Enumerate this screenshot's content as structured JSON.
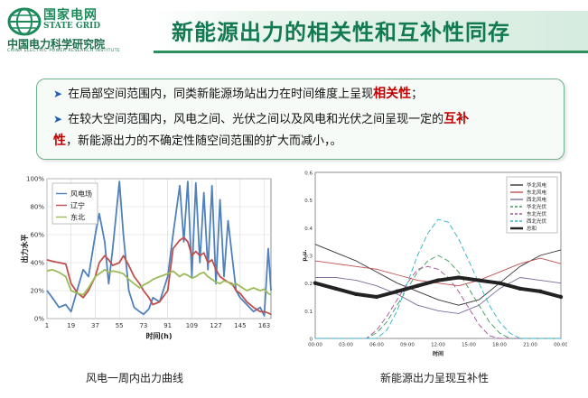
{
  "header": {
    "org_name_cn": "国家电网",
    "org_name_en": "STATE GRID",
    "institute_cn": "中国电力科学研究院",
    "institute_en": "CHINA ELECTRIC POWER RESEARCH INSTITUTE",
    "slide_title": "新能源出力的相关性和互补性同存"
  },
  "bullets": [
    {
      "prefix": "在局部空间范围内，同类新能源场站出力在时间维度上呈现",
      "highlight": "相关性",
      "suffix": "；"
    },
    {
      "prefix": "在较大空间范围内，风电之间、光伏之间以及风电和光伏之间呈现一定的",
      "highlight": "互补",
      "highlight2": "性",
      "suffix": "，新能源出力的不确定性随空间范围的扩大而减小，。"
    }
  ],
  "captions": {
    "left": "风电一周内出力曲线",
    "right": "新能源出力呈现互补性"
  },
  "colors": {
    "brand_green": "#117a4f",
    "highlight_red": "#c00000",
    "bullet_blue": "#1e5fb5"
  },
  "chart_data": [
    {
      "type": "line",
      "ylabel": "出力水平",
      "xlabel": "时间(h)",
      "x_ticks": [
        "1",
        "19",
        "37",
        "55",
        "73",
        "91",
        "109",
        "127",
        "145",
        "163"
      ],
      "y_ticks": [
        "0%",
        "20%",
        "40%",
        "60%",
        "80%",
        "100%"
      ],
      "xlim": [
        1,
        168
      ],
      "ylim": [
        0,
        1
      ],
      "legend": "top-left",
      "series": [
        {
          "name": "风电场",
          "color": "#4f81bd",
          "x": [
            1,
            5,
            10,
            15,
            19,
            24,
            28,
            32,
            37,
            40,
            44,
            47,
            50,
            55,
            58,
            62,
            66,
            70,
            73,
            77,
            80,
            85,
            91,
            95,
            100,
            103,
            106,
            109,
            112,
            115,
            118,
            121,
            124,
            127,
            130,
            133,
            136,
            139,
            142,
            145,
            150,
            155,
            160,
            163,
            166,
            168
          ],
          "values": [
            0.2,
            0.15,
            0.08,
            0.1,
            0.05,
            0.22,
            0.35,
            0.3,
            0.6,
            0.75,
            0.55,
            0.25,
            0.5,
            0.98,
            0.6,
            0.2,
            0.08,
            0.05,
            0.03,
            0.07,
            0.15,
            0.12,
            0.3,
            0.6,
            0.95,
            0.55,
            0.98,
            0.3,
            0.97,
            0.4,
            0.9,
            0.35,
            0.95,
            0.25,
            0.85,
            0.3,
            0.7,
            0.45,
            0.2,
            0.15,
            0.1,
            0.05,
            0.08,
            0.02,
            0.5,
            0.2
          ]
        },
        {
          "name": "辽宁",
          "color": "#c0504d",
          "x": [
            1,
            5,
            10,
            15,
            19,
            24,
            28,
            32,
            37,
            40,
            44,
            47,
            50,
            55,
            58,
            62,
            66,
            70,
            73,
            77,
            80,
            85,
            91,
            95,
            100,
            103,
            106,
            109,
            112,
            115,
            118,
            121,
            124,
            127,
            130,
            133,
            136,
            139,
            142,
            145,
            150,
            155,
            160,
            163,
            166,
            168
          ],
          "values": [
            0.42,
            0.41,
            0.4,
            0.39,
            0.25,
            0.18,
            0.15,
            0.2,
            0.3,
            0.4,
            0.45,
            0.42,
            0.38,
            0.4,
            0.45,
            0.38,
            0.3,
            0.25,
            0.2,
            0.15,
            0.1,
            0.12,
            0.2,
            0.5,
            0.56,
            0.58,
            0.55,
            0.45,
            0.48,
            0.45,
            0.47,
            0.4,
            0.42,
            0.35,
            0.3,
            0.28,
            0.26,
            0.25,
            0.2,
            0.18,
            0.12,
            0.08,
            0.05,
            0.05,
            0.04,
            0.03
          ]
        },
        {
          "name": "东北",
          "color": "#9bbb59",
          "x": [
            1,
            5,
            10,
            15,
            19,
            24,
            28,
            32,
            37,
            40,
            44,
            47,
            50,
            55,
            58,
            62,
            66,
            70,
            73,
            77,
            80,
            85,
            91,
            95,
            100,
            103,
            106,
            109,
            112,
            115,
            118,
            121,
            124,
            127,
            130,
            133,
            136,
            139,
            142,
            145,
            150,
            155,
            160,
            163,
            166,
            168
          ],
          "values": [
            0.34,
            0.35,
            0.33,
            0.3,
            0.2,
            0.18,
            0.17,
            0.22,
            0.3,
            0.32,
            0.35,
            0.33,
            0.34,
            0.33,
            0.32,
            0.28,
            0.25,
            0.22,
            0.24,
            0.26,
            0.28,
            0.3,
            0.32,
            0.34,
            0.3,
            0.32,
            0.31,
            0.29,
            0.3,
            0.32,
            0.33,
            0.3,
            0.28,
            0.26,
            0.25,
            0.27,
            0.26,
            0.24,
            0.25,
            0.23,
            0.2,
            0.22,
            0.2,
            0.21,
            0.18,
            0.17
          ]
        }
      ]
    },
    {
      "type": "line",
      "xlabel": "时间",
      "ylabel": "p.u.",
      "x_ticks": [
        "00:00",
        "03:00",
        "06:00",
        "09:00",
        "12:00",
        "15:00",
        "18:00",
        "21:00",
        "00:00"
      ],
      "y_ticks": [
        "0",
        "0.1",
        "0.2",
        "0.3",
        "0.4",
        "0.5",
        "0.6"
      ],
      "xlim": [
        0,
        24
      ],
      "ylim": [
        0,
        0.6
      ],
      "legend": "top-right",
      "series": [
        {
          "name": "华北风电",
          "color": "#333333",
          "dash": "none",
          "x": [
            0,
            2,
            4,
            6,
            8,
            10,
            12,
            14,
            16,
            18,
            20,
            22,
            24
          ],
          "values": [
            0.34,
            0.31,
            0.28,
            0.24,
            0.2,
            0.17,
            0.14,
            0.12,
            0.14,
            0.2,
            0.26,
            0.3,
            0.32
          ]
        },
        {
          "name": "东北风电",
          "color": "#c0504d",
          "dash": "none",
          "x": [
            0,
            2,
            4,
            6,
            8,
            10,
            12,
            14,
            16,
            18,
            20,
            22,
            24
          ],
          "values": [
            0.28,
            0.27,
            0.26,
            0.25,
            0.23,
            0.21,
            0.2,
            0.19,
            0.21,
            0.24,
            0.27,
            0.29,
            0.27
          ]
        },
        {
          "name": "西北风电",
          "color": "#7d6b9e",
          "dash": "none",
          "x": [
            0,
            2,
            4,
            6,
            8,
            10,
            12,
            14,
            16,
            18,
            20,
            22,
            24
          ],
          "values": [
            0.22,
            0.22,
            0.21,
            0.19,
            0.16,
            0.12,
            0.1,
            0.09,
            0.12,
            0.18,
            0.22,
            0.21,
            0.2
          ]
        },
        {
          "name": "华北光伏",
          "color": "#3a9a55",
          "dash": "6,3",
          "x": [
            0,
            5,
            6,
            7,
            8,
            9,
            10,
            11,
            12,
            13,
            14,
            15,
            16,
            17,
            18,
            19,
            24
          ],
          "values": [
            0,
            0,
            0.02,
            0.06,
            0.12,
            0.18,
            0.24,
            0.28,
            0.3,
            0.28,
            0.24,
            0.18,
            0.12,
            0.06,
            0.02,
            0,
            0
          ]
        },
        {
          "name": "东北光伏",
          "color": "#a94f9a",
          "dash": "6,3",
          "x": [
            0,
            5,
            6,
            7,
            8,
            9,
            10,
            11,
            12,
            13,
            14,
            15,
            16,
            17,
            18,
            24
          ],
          "values": [
            0,
            0,
            0.03,
            0.08,
            0.14,
            0.2,
            0.25,
            0.26,
            0.25,
            0.22,
            0.17,
            0.11,
            0.05,
            0.01,
            0,
            0
          ]
        },
        {
          "name": "西北光伏",
          "color": "#2bb5c9",
          "dash": "6,3",
          "x": [
            0,
            6,
            7,
            8,
            9,
            10,
            11,
            12,
            13,
            14,
            15,
            16,
            17,
            18,
            19,
            20,
            24
          ],
          "values": [
            0,
            0,
            0.03,
            0.1,
            0.2,
            0.3,
            0.38,
            0.43,
            0.42,
            0.36,
            0.28,
            0.2,
            0.12,
            0.06,
            0.02,
            0,
            0
          ]
        },
        {
          "name": "总和",
          "color": "#222222",
          "dash": "none",
          "width": 4,
          "x": [
            0,
            2,
            4,
            6,
            8,
            10,
            12,
            14,
            16,
            18,
            20,
            22,
            24
          ],
          "values": [
            0.2,
            0.18,
            0.16,
            0.15,
            0.17,
            0.19,
            0.21,
            0.22,
            0.21,
            0.2,
            0.18,
            0.17,
            0.15
          ]
        }
      ]
    }
  ]
}
